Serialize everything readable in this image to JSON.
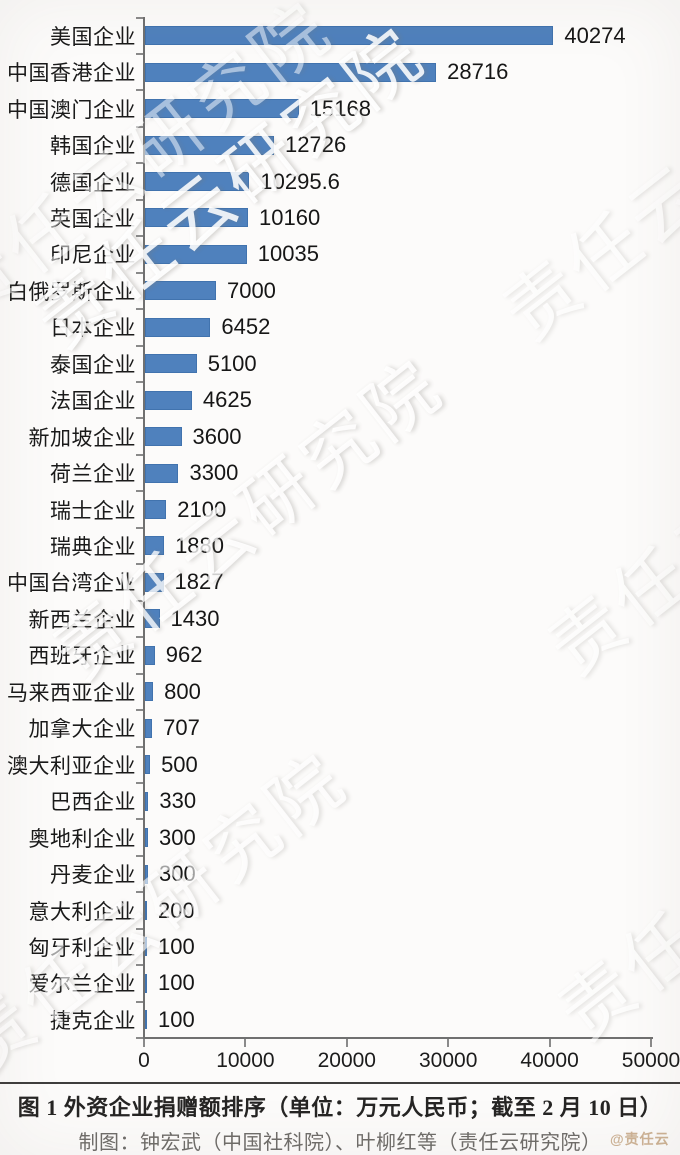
{
  "watermark": {
    "text": "责任云研究院",
    "badge": "@责任云"
  },
  "caption": {
    "title": "图 1 外资企业捐赠额排序（单位：万元人民币；截至 2 月 10 日）",
    "credit": "制图：钟宏武（中国社科院）、叶柳红等（责任云研究院）"
  },
  "chart_data": {
    "type": "bar",
    "orientation": "horizontal",
    "title": "图 1 外资企业捐赠额排序",
    "unit": "万元人民币",
    "as_of": "截至 2 月 10 日",
    "categories": [
      "美国企业",
      "中国香港企业",
      "中国澳门企业",
      "韩国企业",
      "德国企业",
      "英国企业",
      "印尼企业",
      "白俄罗斯企业",
      "日本企业",
      "泰国企业",
      "法国企业",
      "新加坡企业",
      "荷兰企业",
      "瑞士企业",
      "瑞典企业",
      "中国台湾企业",
      "新西兰企业",
      "西班牙企业",
      "马来西亚企业",
      "加拿大企业",
      "澳大利亚企业",
      "巴西企业",
      "奥地利企业",
      "丹麦企业",
      "意大利企业",
      "匈牙利企业",
      "爱尔兰企业",
      "捷克企业"
    ],
    "values": [
      40274,
      28716,
      15168,
      12726,
      10295.6,
      10160,
      10035,
      7000,
      6452,
      5100,
      4625,
      3600,
      3300,
      2100,
      1880,
      1827,
      1430,
      962,
      800,
      707,
      500,
      330,
      300,
      300,
      200,
      100,
      100,
      100
    ],
    "value_labels": [
      "40274",
      "28716",
      "15168",
      "12726",
      "10295.6",
      "10160",
      "10035",
      "7000",
      "6452",
      "5100",
      "4625",
      "3600",
      "3300",
      "2100",
      "1880",
      "1827",
      "1430",
      "962",
      "800",
      "707",
      "500",
      "330",
      "300",
      "300",
      "200",
      "100",
      "100",
      "100"
    ],
    "xlim": [
      0,
      50000
    ],
    "x_ticks": [
      0,
      10000,
      20000,
      30000,
      40000,
      50000
    ],
    "x_tick_labels": [
      "0",
      "10000",
      "20000",
      "30000",
      "40000",
      "50000"
    ],
    "grid": false,
    "legend": "none",
    "bar_color": "#4f81bd"
  }
}
